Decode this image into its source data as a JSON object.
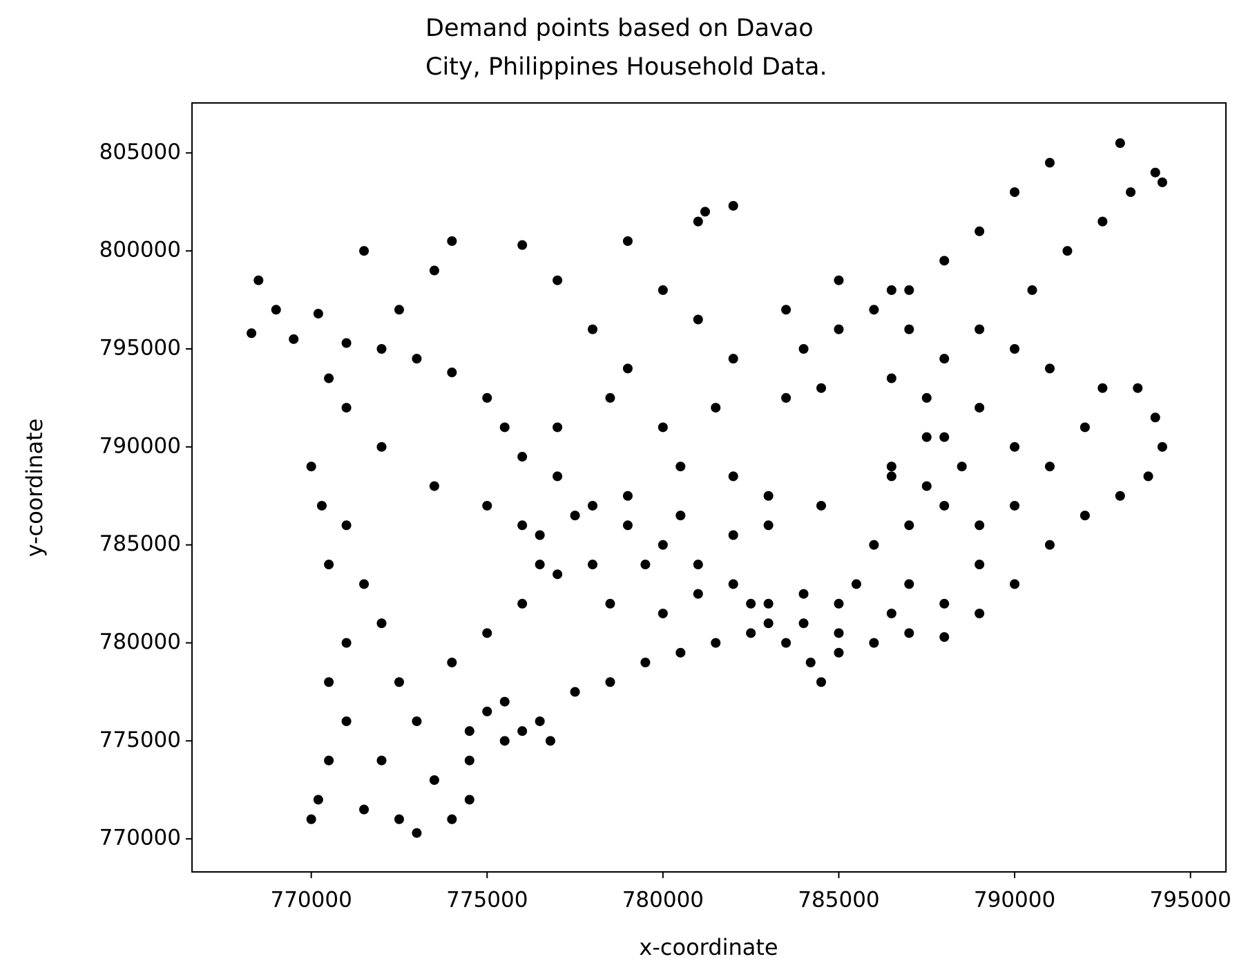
{
  "chart_data": {
    "type": "scatter",
    "title": "Demand points based on Davao\nCity, Philippines Household Data.",
    "xlabel": "x-coordinate",
    "ylabel": "y-coordinate",
    "color": "#000000",
    "xlim": [
      766609,
      796008
    ],
    "ylim": [
      768314,
      807550
    ],
    "xticks": [
      770000,
      775000,
      780000,
      785000,
      790000,
      795000
    ],
    "yticks": [
      770000,
      775000,
      780000,
      785000,
      790000,
      795000,
      800000,
      805000
    ],
    "x": [
      768500,
      769000,
      768300,
      769500,
      770200,
      771000,
      772000,
      773000,
      774000,
      775000,
      775500,
      776000,
      777000,
      778000,
      779000,
      780000,
      781000,
      782000,
      783000,
      784000,
      785000,
      773500,
      774500,
      775500,
      776500,
      777500,
      778500,
      779500,
      780500,
      781500,
      782500,
      783500,
      784200,
      784500,
      785000,
      786000,
      787000,
      788000,
      789000,
      790000,
      791000,
      792000,
      793000,
      793800,
      794200,
      794000,
      793500,
      785500,
      786000,
      787000,
      788000,
      789000,
      790000,
      789000,
      788000,
      787000,
      786500,
      785000,
      784000,
      783000,
      782500,
      788500,
      790000,
      791000,
      792000,
      792500,
      791000,
      790000,
      789000,
      790500,
      791500,
      792500,
      793300,
      794000,
      794200,
      793000,
      791000,
      790000,
      789000,
      788000,
      787000,
      786000,
      785000,
      784000,
      783500,
      784500,
      786500,
      787500,
      787500,
      786500,
      784500,
      783000,
      783000,
      782000,
      770000,
      770300,
      771000,
      770500,
      771500,
      772000,
      771000,
      770500,
      771000,
      770500,
      770200,
      770000,
      771500,
      772500,
      773000,
      774000,
      774500,
      772000,
      773000,
      772500,
      774000,
      775000,
      776000,
      777000,
      778000,
      776500,
      775000,
      773500,
      772000,
      771000,
      770500,
      772500,
      773500,
      774000,
      771500,
      776000,
      777000,
      778000,
      779000,
      778500,
      777000,
      776000,
      777500,
      776500,
      775500,
      776000,
      776800,
      775000,
      774500,
      779000,
      780000,
      781000,
      782000,
      781500,
      780000,
      780500,
      782000,
      779000,
      781000,
      782000,
      781200,
      783500,
      785000,
      786500,
      787000,
      788000,
      789000,
      788000,
      786500,
      787500,
      780500,
      779500,
      778500,
      780000,
      781000
    ],
    "values": [
      798500,
      797000,
      795800,
      795500,
      796800,
      795300,
      795000,
      794500,
      793800,
      792500,
      791000,
      789500,
      788500,
      787000,
      786000,
      785000,
      784000,
      783000,
      782000,
      781000,
      780500,
      773000,
      774000,
      775000,
      776000,
      777500,
      778000,
      779000,
      779500,
      780000,
      780500,
      780000,
      779000,
      778000,
      779500,
      780000,
      780500,
      780300,
      781500,
      783000,
      785000,
      786500,
      787500,
      788500,
      790000,
      791500,
      793000,
      783000,
      785000,
      786000,
      787000,
      786000,
      787000,
      784000,
      782000,
      783000,
      781500,
      782000,
      782500,
      781000,
      782000,
      789000,
      790000,
      789000,
      791000,
      793000,
      794000,
      795000,
      796000,
      798000,
      800000,
      801500,
      803000,
      804000,
      803500,
      805500,
      804500,
      803000,
      801000,
      799500,
      798000,
      797000,
      796000,
      795000,
      792500,
      793000,
      793500,
      792500,
      790500,
      788500,
      787000,
      787500,
      786000,
      785500,
      789000,
      787000,
      786000,
      784000,
      783000,
      781000,
      780000,
      778000,
      776000,
      774000,
      772000,
      771000,
      771500,
      771000,
      770300,
      771000,
      772000,
      774000,
      776000,
      778000,
      779000,
      780500,
      782000,
      783500,
      784000,
      785500,
      787000,
      788000,
      790000,
      792000,
      793500,
      797000,
      799000,
      800500,
      800000,
      800300,
      798500,
      796000,
      794000,
      792500,
      791000,
      786000,
      786500,
      784000,
      777000,
      775500,
      775000,
      776500,
      775500,
      800500,
      798000,
      796500,
      794500,
      792000,
      791000,
      789000,
      788500,
      787500,
      801500,
      802300,
      802000,
      797000,
      798500,
      798000,
      796000,
      794500,
      792000,
      790500,
      789000,
      788000,
      786500,
      784000,
      782000,
      781500,
      782500
    ]
  }
}
